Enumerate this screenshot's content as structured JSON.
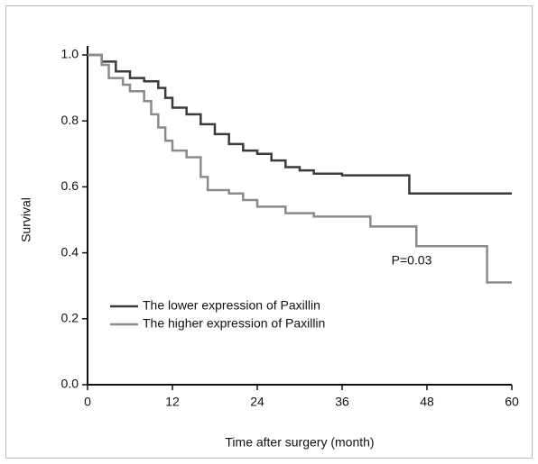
{
  "chart_data": {
    "type": "step",
    "xlabel": "Time after surgery (month)",
    "ylabel": "Survival",
    "annotation": "P=0.03",
    "xlim": [
      0,
      60
    ],
    "xticks": [
      0,
      12,
      24,
      36,
      48,
      60
    ],
    "ylim": [
      0,
      1.0
    ],
    "yticks": [
      {
        "value": 0,
        "label": "0.0"
      },
      0.2,
      0.4,
      0.6,
      0.8,
      {
        "value": 1.0,
        "label": "1.0"
      }
    ],
    "series": [
      {
        "name": "The lower expression of Paxillin",
        "color": "#3a3a3a",
        "x": [
          0,
          2,
          4,
          6,
          8,
          10,
          11,
          12,
          14,
          16,
          18,
          20,
          22,
          24,
          26,
          28,
          30,
          32,
          36,
          45.5,
          60
        ],
        "values": [
          1.0,
          0.98,
          0.95,
          0.93,
          0.92,
          0.9,
          0.87,
          0.84,
          0.82,
          0.79,
          0.76,
          0.73,
          0.71,
          0.7,
          0.68,
          0.66,
          0.65,
          0.64,
          0.635,
          0.58,
          0.58
        ]
      },
      {
        "name": "The higher expression of Paxillin",
        "color": "#8a8a8a",
        "x": [
          0,
          2,
          3,
          5,
          6,
          8,
          9,
          10,
          11,
          12,
          14,
          16,
          17,
          20,
          22,
          24,
          28,
          32,
          40,
          46.5,
          56.5,
          60
        ],
        "values": [
          1.0,
          0.97,
          0.93,
          0.91,
          0.89,
          0.86,
          0.82,
          0.78,
          0.74,
          0.71,
          0.69,
          0.63,
          0.59,
          0.58,
          0.56,
          0.54,
          0.52,
          0.51,
          0.48,
          0.42,
          0.31,
          0.31
        ]
      }
    ]
  }
}
